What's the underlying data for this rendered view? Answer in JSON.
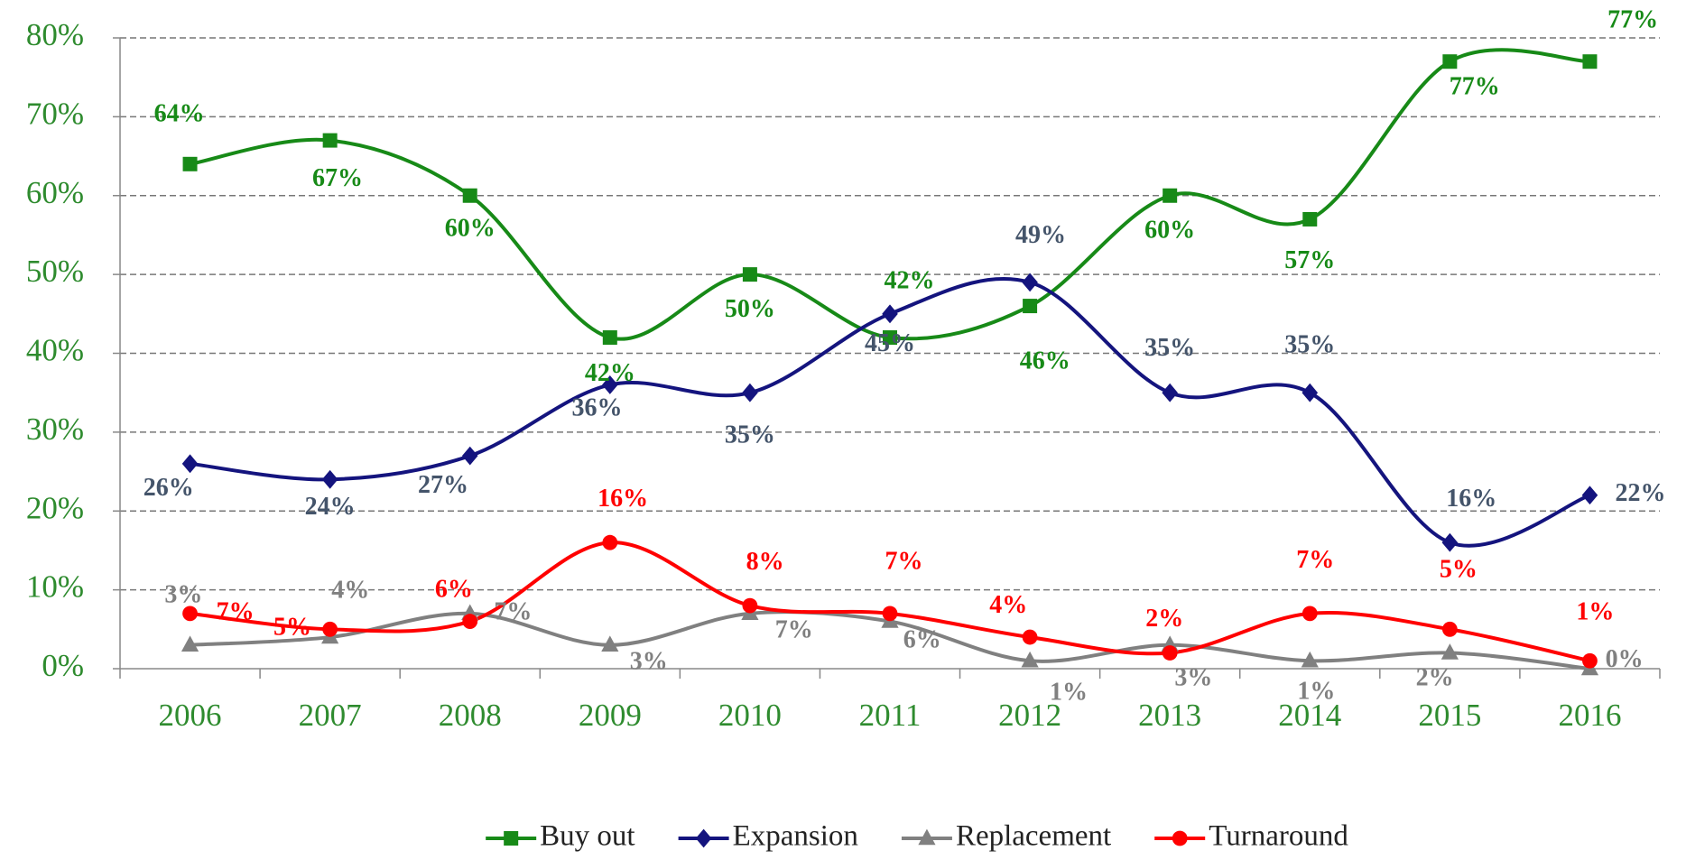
{
  "chart_data": {
    "type": "line",
    "categories": [
      "2006",
      "2007",
      "2008",
      "2009",
      "2010",
      "2011",
      "2012",
      "2013",
      "2014",
      "2015",
      "2016"
    ],
    "ylim": [
      0,
      80
    ],
    "yticks": [
      {
        "value": 0,
        "label": "0%"
      },
      {
        "value": 10,
        "label": "10%"
      },
      {
        "value": 20,
        "label": "20%"
      },
      {
        "value": 30,
        "label": "30%"
      },
      {
        "value": 40,
        "label": "40%"
      },
      {
        "value": 50,
        "label": "50%"
      },
      {
        "value": 60,
        "label": "60%"
      },
      {
        "value": 70,
        "label": "70%"
      },
      {
        "value": 80,
        "label": "80%"
      }
    ],
    "grid": true,
    "smooth": true,
    "legend": "bottom",
    "series": [
      {
        "name": "Buy out",
        "color": "#178a17",
        "label_color": "#178a17",
        "marker": "square",
        "values": [
          64,
          67,
          60,
          42,
          50,
          42,
          46,
          60,
          57,
          77,
          77
        ],
        "value_labels": [
          "64%",
          "67%",
          "60%",
          "42%",
          "50%",
          "42%",
          "46%",
          "60%",
          "57%",
          "77%",
          "77%"
        ]
      },
      {
        "name": "Expansion",
        "color": "#14147e",
        "label_color": "#44546a",
        "marker": "diamond",
        "values": [
          26,
          24,
          27,
          36,
          35,
          45,
          49,
          35,
          35,
          16,
          22
        ],
        "value_labels": [
          "26%",
          "24%",
          "27%",
          "36%",
          "35%",
          "45%",
          "49%",
          "35%",
          "35%",
          "16%",
          "22%"
        ]
      },
      {
        "name": "Replacement",
        "color": "#808080",
        "label_color": "#808080",
        "marker": "triangle",
        "values": [
          3,
          4,
          7,
          3,
          7,
          6,
          1,
          3,
          1,
          2,
          0
        ],
        "value_labels": [
          "3%",
          "4%",
          "7%",
          "3%",
          "7%",
          "6%",
          "1%",
          "3%",
          "1%",
          "2%",
          "0%"
        ]
      },
      {
        "name": "Turnaround",
        "color": "#ff0000",
        "label_color": "#ff0000",
        "marker": "circle",
        "values": [
          7,
          5,
          6,
          16,
          8,
          7,
          4,
          2,
          7,
          5,
          1
        ],
        "value_labels": [
          "7%",
          "5%",
          "6%",
          "16%",
          "8%",
          "7%",
          "4%",
          "2%",
          "7%",
          "5%",
          "1%"
        ]
      }
    ]
  }
}
